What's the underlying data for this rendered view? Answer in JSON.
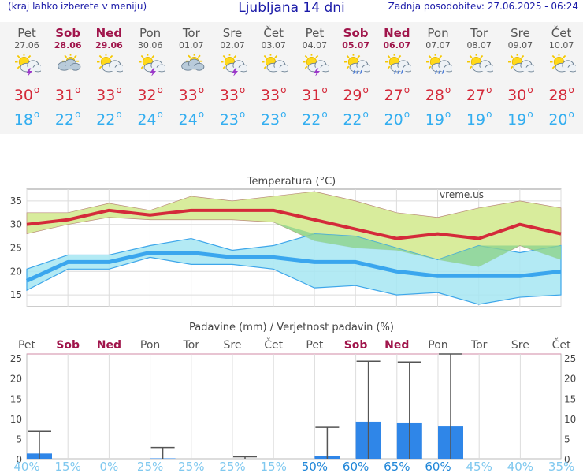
{
  "header": {
    "menu_hint": "(kraj lahko izberete v meniju)",
    "title": "Ljubljana 14 dni",
    "updated": "Zadnja posodobitev: 27.06.2025 - 06:24"
  },
  "colors": {
    "weekend": "#a0154b",
    "weekday": "#555555",
    "max_temp": "#d42a3a",
    "min_temp": "#33aef0",
    "max_band": "#d8ec9c",
    "min_band": "#a6e6f2",
    "overlap": "#8fd48f",
    "precip_bar": "#2f86e8"
  },
  "days": [
    {
      "day": "Pet",
      "date": "27.06",
      "weekend": false,
      "icon": "sun-cloud-thunder-icon",
      "tmax": "30",
      "tmin": "18"
    },
    {
      "day": "Sob",
      "date": "28.06",
      "weekend": true,
      "icon": "cloudy-sun-icon",
      "tmax": "31",
      "tmin": "22"
    },
    {
      "day": "Ned",
      "date": "29.06",
      "weekend": true,
      "icon": "partly-sunny-icon",
      "tmax": "33",
      "tmin": "22"
    },
    {
      "day": "Pon",
      "date": "30.06",
      "weekend": false,
      "icon": "sun-cloud-thunder-icon",
      "tmax": "32",
      "tmin": "24"
    },
    {
      "day": "Tor",
      "date": "01.07",
      "weekend": false,
      "icon": "cloudy-sun-icon",
      "tmax": "33",
      "tmin": "24"
    },
    {
      "day": "Sre",
      "date": "02.07",
      "weekend": false,
      "icon": "sun-cloud-thunder-icon",
      "tmax": "33",
      "tmin": "23"
    },
    {
      "day": "Čet",
      "date": "03.07",
      "weekend": false,
      "icon": "partly-sunny-icon",
      "tmax": "33",
      "tmin": "23"
    },
    {
      "day": "Pet",
      "date": "04.07",
      "weekend": false,
      "icon": "sun-cloud-thunder-icon",
      "tmax": "31",
      "tmin": "22"
    },
    {
      "day": "Sob",
      "date": "05.07",
      "weekend": true,
      "icon": "sun-rain-icon",
      "tmax": "29",
      "tmin": "22"
    },
    {
      "day": "Ned",
      "date": "06.07",
      "weekend": true,
      "icon": "sun-rain-icon",
      "tmax": "27",
      "tmin": "20"
    },
    {
      "day": "Pon",
      "date": "07.07",
      "weekend": false,
      "icon": "sun-rain-icon",
      "tmax": "28",
      "tmin": "19"
    },
    {
      "day": "Tor",
      "date": "08.07",
      "weekend": false,
      "icon": "partly-sunny-icon",
      "tmax": "27",
      "tmin": "19"
    },
    {
      "day": "Sre",
      "date": "09.07",
      "weekend": false,
      "icon": "partly-sunny-icon",
      "tmax": "30",
      "tmin": "19"
    },
    {
      "day": "Čet",
      "date": "10.07",
      "weekend": false,
      "icon": "partly-sunny-icon",
      "tmax": "28",
      "tmin": "20"
    }
  ],
  "chart_data": [
    {
      "type": "line",
      "title": "Temperatura (°C)",
      "watermark": "vreme.us",
      "x": [
        "Pet",
        "Sob",
        "Ned",
        "Pon",
        "Tor",
        "Sre",
        "Čet",
        "Pet",
        "Sob",
        "Ned",
        "Pon",
        "Tor",
        "Sre",
        "Čet"
      ],
      "ylim": [
        12.5,
        37.5
      ],
      "yticks": [
        15,
        20,
        25,
        30,
        35
      ],
      "grid": true,
      "series": [
        {
          "name": "max",
          "values": [
            30,
            31,
            33,
            32,
            33,
            33,
            33,
            31,
            29,
            27,
            28,
            27,
            30,
            28
          ],
          "band_low": [
            28,
            30,
            31.5,
            31,
            31,
            31,
            30.5,
            26.5,
            25,
            24.5,
            22.5,
            21,
            25.5,
            22.5
          ],
          "band_high": [
            32.5,
            32.5,
            34.5,
            33,
            36,
            35,
            36,
            37,
            35,
            32.5,
            31.5,
            33.5,
            35,
            33.5
          ]
        },
        {
          "name": "min",
          "values": [
            18,
            22,
            22,
            24,
            24,
            23,
            23,
            22,
            22,
            20,
            19,
            19,
            19,
            20
          ],
          "band_low": [
            16,
            20.5,
            20.5,
            23,
            21.5,
            21.5,
            20.5,
            16.5,
            17,
            15,
            15.5,
            13,
            14.5,
            15
          ],
          "band_high": [
            20.5,
            23.5,
            23.5,
            25.5,
            27,
            24.5,
            25.5,
            28,
            27.5,
            25,
            22.5,
            25.5,
            24,
            25.5
          ]
        }
      ]
    },
    {
      "type": "bar",
      "title": "Padavine (mm) / Verjetnost padavin (%)",
      "categories": [
        "Pet",
        "Sob",
        "Ned",
        "Pon",
        "Tor",
        "Sre",
        "Čet",
        "Pet",
        "Sob",
        "Ned",
        "Pon",
        "Tor",
        "Sre",
        "Čet"
      ],
      "ylim": [
        0,
        26
      ],
      "yticks": [
        0,
        5,
        10,
        15,
        20,
        25
      ],
      "values": [
        1.3,
        0,
        0,
        0.1,
        0,
        0,
        0,
        0.7,
        9.2,
        9.0,
        8.0,
        0,
        0,
        0
      ],
      "max_range": [
        6.8,
        0,
        0,
        2.8,
        0,
        0.5,
        0,
        7.8,
        24.2,
        24.0,
        26.0,
        0,
        0,
        0
      ],
      "probability": [
        "40%",
        "15%",
        "0%",
        "25%",
        "25%",
        "25%",
        "15%",
        "50%",
        "60%",
        "65%",
        "60%",
        "45%",
        "40%",
        "35%"
      ]
    }
  ]
}
